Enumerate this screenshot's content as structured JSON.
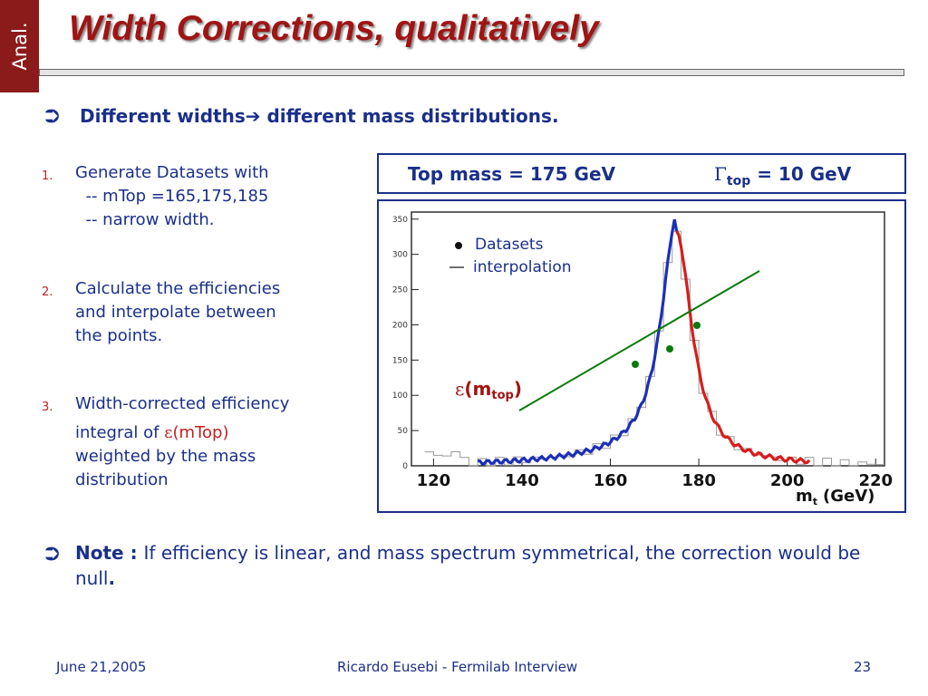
{
  "header": {
    "side_tab": "Anal.",
    "title": "Width Corrections, qualitatively"
  },
  "lead": {
    "text1": "Different widths",
    "arrow": "➔",
    "text2": " different mass distributions."
  },
  "items": [
    {
      "num": "1.",
      "lines": [
        "Generate Datasets with",
        "  -- mTop =165,175,185",
        "  -- narrow width."
      ]
    },
    {
      "num": "2.",
      "lines": [
        "Calculate the efficiencies",
        "and interpolate between",
        "the points."
      ]
    },
    {
      "num": "3.",
      "lines": [
        "Width-corrected efficiency",
        "integral of ",
        "ε",
        "(mTop)",
        "weighted by the mass",
        "distribution"
      ]
    }
  ],
  "params_box": {
    "left": "Top mass = 175  GeV",
    "gamma": "Γ",
    "gamma_sub": "top",
    "right": " = 10 GeV"
  },
  "plot": {
    "legend_datasets": "Datasets",
    "legend_interp": "interpolation",
    "eps_label": "ε",
    "eps_paren_open": "(m",
    "eps_sub": "top",
    "eps_paren_close": ")",
    "x_ticks": [
      "120",
      "140",
      "160",
      "180",
      "200",
      "220"
    ],
    "y_ticks": [
      "0",
      "50",
      "100",
      "150",
      "200",
      "250",
      "300",
      "350"
    ],
    "x_axis_label": "m",
    "x_axis_sub": "t",
    "x_axis_unit": "(GeV)",
    "colors": {
      "blue_curve": "#1c2fb8",
      "red_curve": "#d81c1c",
      "eff_line": "#0a7a0a"
    }
  },
  "note": {
    "label": "Note : ",
    "text": "If efficiency is linear, and mass spectrum symmetrical, the correction would be null",
    "end": "."
  },
  "footer": {
    "date": "June 21,2005",
    "center": "Ricardo Eusebi - Fermilab Interview",
    "page": "23"
  },
  "colors": {
    "title_red": "#a01414",
    "navy_text": "#1a2f8a",
    "tab_bg": "#8b1a1a"
  }
}
